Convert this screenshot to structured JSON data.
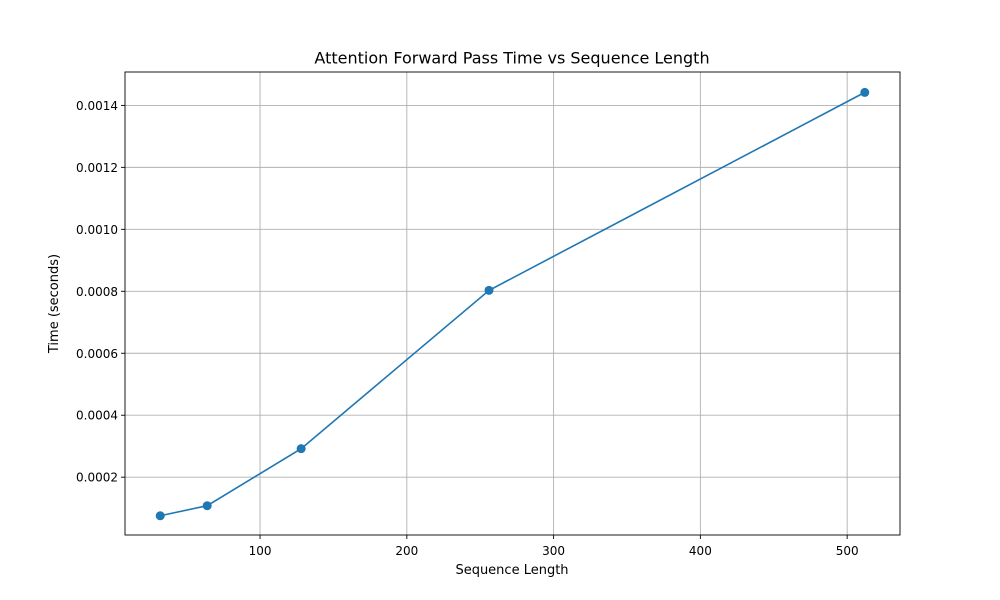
{
  "chart_data": {
    "type": "line",
    "title": "Attention Forward Pass Time vs Sequence Length",
    "xlabel": "Sequence Length",
    "ylabel": "Time (seconds)",
    "xlim": [
      8,
      536
    ],
    "ylim": [
      1.34e-05,
      0.0015078
    ],
    "x_ticks": [
      100,
      200,
      300,
      400,
      500
    ],
    "y_ticks": [
      0.0002,
      0.0004,
      0.0006,
      0.0008,
      0.001,
      0.0012,
      0.0014
    ],
    "x_tick_labels": [
      "100",
      "200",
      "300",
      "400",
      "500"
    ],
    "y_tick_labels": [
      "0.0002",
      "0.0004",
      "0.0006",
      "0.0008",
      "0.0010",
      "0.0012",
      "0.0014"
    ],
    "grid": true,
    "series": [
      {
        "color": "#1f77b4",
        "marker": "circle",
        "x": [
          32,
          64,
          128,
          256,
          512
        ],
        "y": [
          7.55e-05,
          0.000108,
          0.000292,
          0.000803,
          0.001442
        ]
      }
    ]
  }
}
